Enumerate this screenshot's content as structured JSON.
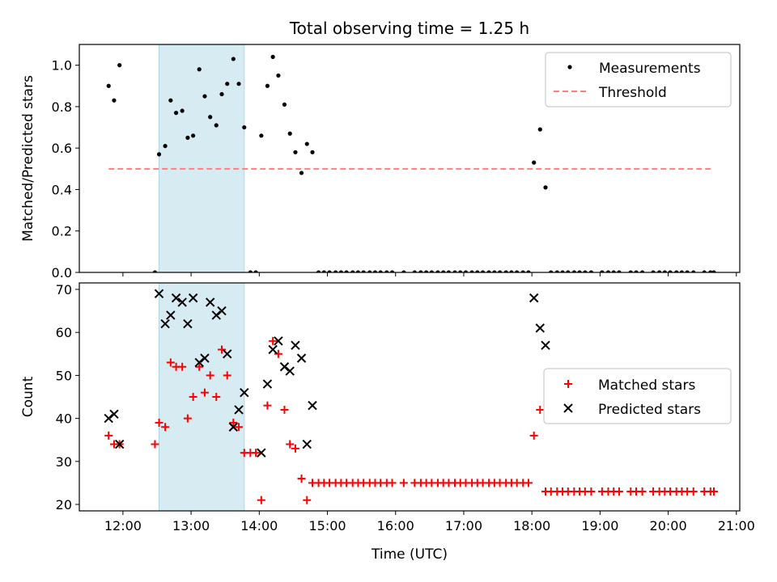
{
  "title": "Total observing time = 1.25 h",
  "colors": {
    "measurement": "#000000",
    "threshold": "#ff7f7f",
    "matched": "#ff0000",
    "predicted": "#000000",
    "shade": "#add8e6"
  },
  "chart_data": [
    {
      "type": "scatter",
      "ylabel": "Matched/Predicted stars",
      "ylim": [
        0.0,
        1.1
      ],
      "xlim": [
        11.36,
        21.05
      ],
      "yticks": [
        0.0,
        0.2,
        0.4,
        0.6,
        0.8,
        1.0
      ],
      "yticklabels": [
        "0.0",
        "0.2",
        "0.4",
        "0.6",
        "0.8",
        "1.0"
      ],
      "shaded_span": [
        12.53,
        13.78
      ],
      "legend_position": "top-right",
      "legend": [
        "Measurements",
        "Threshold"
      ],
      "threshold": {
        "name": "Threshold",
        "value": 0.5,
        "x_range": [
          11.79,
          20.67
        ],
        "style": "dashed"
      },
      "series": [
        {
          "name": "Measurements",
          "marker": "dot",
          "points": [
            [
              11.79,
              0.9
            ],
            [
              11.87,
              0.83
            ],
            [
              11.95,
              1.0
            ],
            [
              12.47,
              0.0
            ],
            [
              12.53,
              0.57
            ],
            [
              12.62,
              0.61
            ],
            [
              12.7,
              0.83
            ],
            [
              12.78,
              0.77
            ],
            [
              12.87,
              0.78
            ],
            [
              12.95,
              0.65
            ],
            [
              13.03,
              0.66
            ],
            [
              13.12,
              0.98
            ],
            [
              13.2,
              0.85
            ],
            [
              13.28,
              0.75
            ],
            [
              13.37,
              0.71
            ],
            [
              13.45,
              0.86
            ],
            [
              13.53,
              0.91
            ],
            [
              13.62,
              1.03
            ],
            [
              13.7,
              0.91
            ],
            [
              13.78,
              0.7
            ],
            [
              13.87,
              0.0
            ],
            [
              13.95,
              0.0
            ],
            [
              14.03,
              0.66
            ],
            [
              14.12,
              0.9
            ],
            [
              14.2,
              1.04
            ],
            [
              14.28,
              0.95
            ],
            [
              14.37,
              0.81
            ],
            [
              14.45,
              0.67
            ],
            [
              14.53,
              0.58
            ],
            [
              14.62,
              0.48
            ],
            [
              14.7,
              0.62
            ],
            [
              14.78,
              0.58
            ],
            [
              14.87,
              0.0
            ],
            [
              14.95,
              0.0
            ],
            [
              15.03,
              0.0
            ],
            [
              15.12,
              0.0
            ],
            [
              15.2,
              0.0
            ],
            [
              15.28,
              0.0
            ],
            [
              15.37,
              0.0
            ],
            [
              15.45,
              0.0
            ],
            [
              15.53,
              0.0
            ],
            [
              15.62,
              0.0
            ],
            [
              15.7,
              0.0
            ],
            [
              15.78,
              0.0
            ],
            [
              15.87,
              0.0
            ],
            [
              15.95,
              0.0
            ],
            [
              16.12,
              0.0
            ],
            [
              16.28,
              0.0
            ],
            [
              16.37,
              0.0
            ],
            [
              16.45,
              0.0
            ],
            [
              16.53,
              0.0
            ],
            [
              16.62,
              0.0
            ],
            [
              16.7,
              0.0
            ],
            [
              16.78,
              0.0
            ],
            [
              16.87,
              0.0
            ],
            [
              16.95,
              0.0
            ],
            [
              17.03,
              0.0
            ],
            [
              17.12,
              0.0
            ],
            [
              17.2,
              0.0
            ],
            [
              17.28,
              0.0
            ],
            [
              17.37,
              0.0
            ],
            [
              17.45,
              0.0
            ],
            [
              17.53,
              0.0
            ],
            [
              17.62,
              0.0
            ],
            [
              17.7,
              0.0
            ],
            [
              17.78,
              0.0
            ],
            [
              17.87,
              0.0
            ],
            [
              17.95,
              0.0
            ],
            [
              18.03,
              0.53
            ],
            [
              18.12,
              0.69
            ],
            [
              18.2,
              0.41
            ],
            [
              18.28,
              0.0
            ],
            [
              18.37,
              0.0
            ],
            [
              18.45,
              0.0
            ],
            [
              18.53,
              0.0
            ],
            [
              18.62,
              0.0
            ],
            [
              18.7,
              0.0
            ],
            [
              18.78,
              0.0
            ],
            [
              18.87,
              0.0
            ],
            [
              19.03,
              0.0
            ],
            [
              19.12,
              0.0
            ],
            [
              19.2,
              0.0
            ],
            [
              19.28,
              0.0
            ],
            [
              19.45,
              0.0
            ],
            [
              19.53,
              0.0
            ],
            [
              19.62,
              0.0
            ],
            [
              19.78,
              0.0
            ],
            [
              19.87,
              0.0
            ],
            [
              19.95,
              0.0
            ],
            [
              20.03,
              0.0
            ],
            [
              20.12,
              0.0
            ],
            [
              20.2,
              0.0
            ],
            [
              20.28,
              0.0
            ],
            [
              20.37,
              0.0
            ],
            [
              20.53,
              0.0
            ],
            [
              20.62,
              0.0
            ],
            [
              20.67,
              0.0
            ]
          ]
        }
      ]
    },
    {
      "type": "scatter",
      "xlabel": "Time (UTC)",
      "ylabel": "Count",
      "ylim": [
        18.5,
        71.5
      ],
      "xlim": [
        11.36,
        21.05
      ],
      "yticks": [
        20,
        30,
        40,
        50,
        60,
        70
      ],
      "yticklabels": [
        "20",
        "30",
        "40",
        "50",
        "60",
        "70"
      ],
      "xticks": [
        12,
        13,
        14,
        15,
        16,
        17,
        18,
        19,
        20,
        21
      ],
      "xticklabels": [
        "12:00",
        "13:00",
        "14:00",
        "15:00",
        "16:00",
        "17:00",
        "18:00",
        "19:00",
        "20:00",
        "21:00"
      ],
      "shaded_span": [
        12.53,
        13.78
      ],
      "legend_position": "center-right",
      "legend": [
        "Matched stars",
        "Predicted stars"
      ],
      "series": [
        {
          "name": "Matched stars",
          "marker": "plus",
          "points": [
            [
              11.79,
              36
            ],
            [
              11.87,
              34
            ],
            [
              11.95,
              34
            ],
            [
              12.47,
              34
            ],
            [
              12.53,
              39
            ],
            [
              12.62,
              38
            ],
            [
              12.7,
              53
            ],
            [
              12.78,
              52
            ],
            [
              12.87,
              52
            ],
            [
              12.95,
              40
            ],
            [
              13.03,
              45
            ],
            [
              13.12,
              52
            ],
            [
              13.2,
              46
            ],
            [
              13.28,
              50
            ],
            [
              13.37,
              45
            ],
            [
              13.45,
              56
            ],
            [
              13.53,
              50
            ],
            [
              13.62,
              39
            ],
            [
              13.7,
              38
            ],
            [
              13.78,
              32
            ],
            [
              13.87,
              32
            ],
            [
              13.95,
              32
            ],
            [
              14.03,
              21
            ],
            [
              14.12,
              43
            ],
            [
              14.2,
              58
            ],
            [
              14.28,
              55
            ],
            [
              14.37,
              42
            ],
            [
              14.45,
              34
            ],
            [
              14.53,
              33
            ],
            [
              14.62,
              26
            ],
            [
              14.7,
              21
            ],
            [
              14.78,
              25
            ],
            [
              14.87,
              25
            ],
            [
              14.95,
              25
            ],
            [
              15.03,
              25
            ],
            [
              15.12,
              25
            ],
            [
              15.2,
              25
            ],
            [
              15.28,
              25
            ],
            [
              15.37,
              25
            ],
            [
              15.45,
              25
            ],
            [
              15.53,
              25
            ],
            [
              15.62,
              25
            ],
            [
              15.7,
              25
            ],
            [
              15.78,
              25
            ],
            [
              15.87,
              25
            ],
            [
              15.95,
              25
            ],
            [
              16.12,
              25
            ],
            [
              16.28,
              25
            ],
            [
              16.37,
              25
            ],
            [
              16.45,
              25
            ],
            [
              16.53,
              25
            ],
            [
              16.62,
              25
            ],
            [
              16.7,
              25
            ],
            [
              16.78,
              25
            ],
            [
              16.87,
              25
            ],
            [
              16.95,
              25
            ],
            [
              17.03,
              25
            ],
            [
              17.12,
              25
            ],
            [
              17.2,
              25
            ],
            [
              17.28,
              25
            ],
            [
              17.37,
              25
            ],
            [
              17.45,
              25
            ],
            [
              17.53,
              25
            ],
            [
              17.62,
              25
            ],
            [
              17.7,
              25
            ],
            [
              17.78,
              25
            ],
            [
              17.87,
              25
            ],
            [
              17.95,
              25
            ],
            [
              18.03,
              36
            ],
            [
              18.12,
              42
            ],
            [
              18.2,
              23
            ],
            [
              18.28,
              23
            ],
            [
              18.37,
              23
            ],
            [
              18.45,
              23
            ],
            [
              18.53,
              23
            ],
            [
              18.62,
              23
            ],
            [
              18.7,
              23
            ],
            [
              18.78,
              23
            ],
            [
              18.87,
              23
            ],
            [
              19.03,
              23
            ],
            [
              19.12,
              23
            ],
            [
              19.2,
              23
            ],
            [
              19.28,
              23
            ],
            [
              19.45,
              23
            ],
            [
              19.53,
              23
            ],
            [
              19.62,
              23
            ],
            [
              19.78,
              23
            ],
            [
              19.87,
              23
            ],
            [
              19.95,
              23
            ],
            [
              20.03,
              23
            ],
            [
              20.12,
              23
            ],
            [
              20.2,
              23
            ],
            [
              20.28,
              23
            ],
            [
              20.37,
              23
            ],
            [
              20.53,
              23
            ],
            [
              20.62,
              23
            ],
            [
              20.67,
              23
            ]
          ]
        },
        {
          "name": "Predicted stars",
          "marker": "x",
          "points": [
            [
              11.79,
              40
            ],
            [
              11.87,
              41
            ],
            [
              11.95,
              34
            ],
            [
              12.53,
              69
            ],
            [
              12.62,
              62
            ],
            [
              12.7,
              64
            ],
            [
              12.78,
              68
            ],
            [
              12.87,
              67
            ],
            [
              12.95,
              62
            ],
            [
              13.03,
              68
            ],
            [
              13.12,
              53
            ],
            [
              13.2,
              54
            ],
            [
              13.28,
              67
            ],
            [
              13.37,
              64
            ],
            [
              13.45,
              65
            ],
            [
              13.53,
              55
            ],
            [
              13.62,
              38
            ],
            [
              13.7,
              42
            ],
            [
              13.78,
              46
            ],
            [
              14.03,
              32
            ],
            [
              14.12,
              48
            ],
            [
              14.2,
              56
            ],
            [
              14.28,
              58
            ],
            [
              14.37,
              52
            ],
            [
              14.45,
              51
            ],
            [
              14.53,
              57
            ],
            [
              14.62,
              54
            ],
            [
              14.7,
              34
            ],
            [
              14.78,
              43
            ],
            [
              18.03,
              68
            ],
            [
              18.12,
              61
            ],
            [
              18.2,
              57
            ]
          ]
        }
      ]
    }
  ]
}
